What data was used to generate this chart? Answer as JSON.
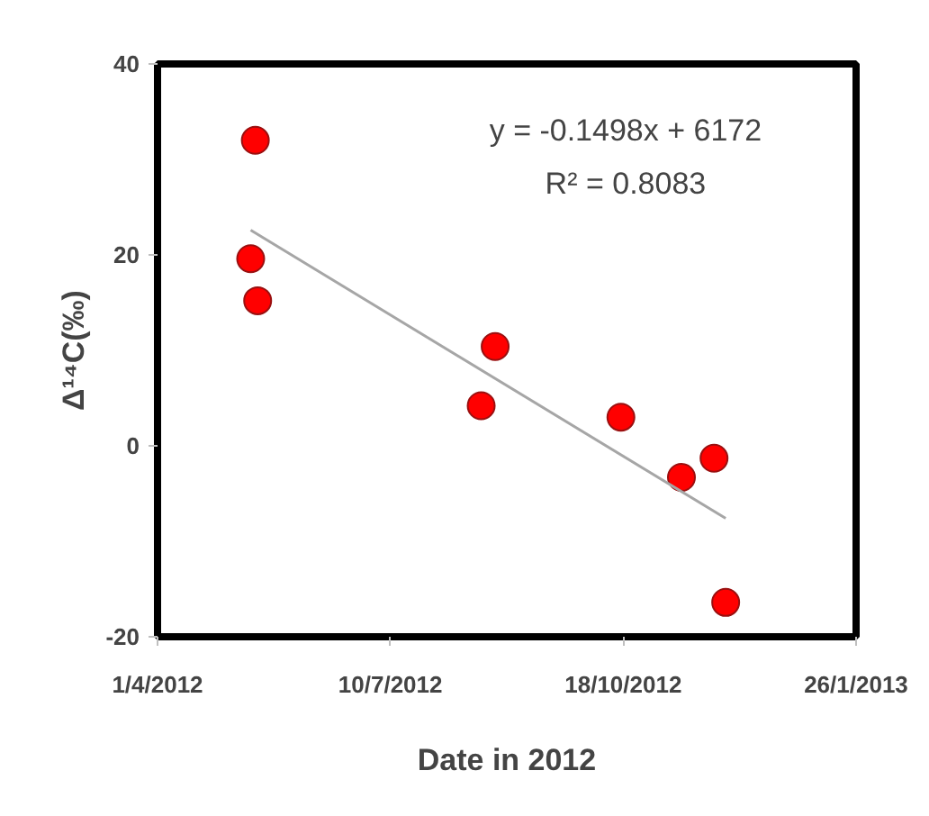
{
  "chart_data": {
    "type": "scatter",
    "xlabel": "Date in 2012",
    "ylabel": "Δ¹⁴C(‰)",
    "x": [
      "2012-05-13",
      "2012-05-11",
      "2012-05-14",
      "2012-08-24",
      "2012-08-18",
      "2012-10-17",
      "2012-11-12",
      "2012-11-26",
      "2012-12-01"
    ],
    "series": [
      {
        "color": "#ff0000",
        "values": [
          32.0,
          19.6,
          15.2,
          10.4,
          4.2,
          3.0,
          -3.3,
          -1.3,
          -16.4
        ]
      },
      {
        "type": "line",
        "marker": "none",
        "color": "#a6a6a6",
        "x": [
          "2012-05-11",
          "2012-12-01"
        ],
        "values": [
          22.6,
          -7.6
        ]
      }
    ],
    "xlim": [
      "2012-04-01",
      "2013-01-26"
    ],
    "xticks": [
      {
        "value": "2012-04-01",
        "label": "1/4/2012"
      },
      {
        "value": "2012-07-10",
        "label": "10/7/2012"
      },
      {
        "value": "2012-10-18",
        "label": "18/10/2012"
      },
      {
        "value": "2013-01-26",
        "label": "26/1/2013"
      }
    ],
    "ylim": [
      -20,
      40
    ],
    "yticks": [
      -20,
      0,
      20,
      40
    ],
    "annotations": [
      "y = -0.1498x + 6172",
      "R² = 0.8083"
    ],
    "grid": false,
    "marker": "circle"
  }
}
